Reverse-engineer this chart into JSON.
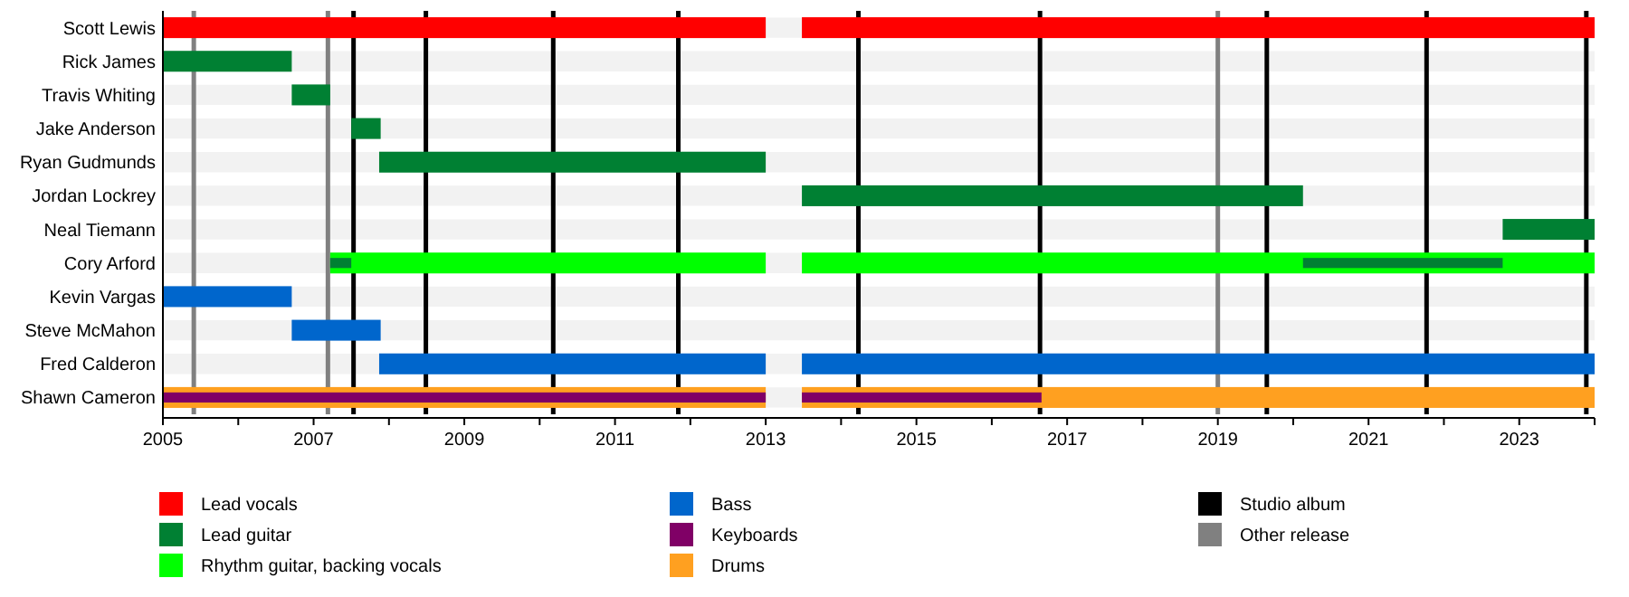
{
  "chart_data": {
    "type": "bar",
    "orientation": "horizontal",
    "legend": "bottom",
    "categories": [
      "Scott Lewis",
      "Rick James",
      "Travis Whiting",
      "Jake Anderson",
      "Ryan Gudmunds",
      "Jordan Lockrey",
      "Neal Tiemann",
      "Cory Arford",
      "Kevin Vargas",
      "Steve McMahon",
      "Fred Calderon",
      "Shawn Cameron"
    ],
    "xlim": [
      2005,
      2024
    ],
    "xticks": [
      2005,
      {
        "value": 2006,
        "label": null
      },
      2007,
      {
        "value": 2008,
        "label": null
      },
      2009,
      {
        "value": 2010,
        "label": null
      },
      2011,
      {
        "value": 2012,
        "label": null
      },
      2013,
      {
        "value": 2014,
        "label": null
      },
      2015,
      {
        "value": 2016,
        "label": null
      },
      2017,
      {
        "value": 2018,
        "label": null
      },
      2019,
      {
        "value": 2020,
        "label": null
      },
      2021,
      {
        "value": 2022,
        "label": null
      },
      2023,
      {
        "value": 2024,
        "label": null
      }
    ],
    "series": [
      {
        "name": "Lead vocals",
        "color": "#ff0000",
        "base": [
          2005,
          null,
          null,
          null,
          null,
          null,
          null,
          null,
          null,
          null,
          null,
          null
        ],
        "values": [
          8,
          null,
          null,
          null,
          null,
          null,
          null,
          null,
          null,
          null,
          null,
          null
        ]
      },
      {
        "color": "#ff0000",
        "base": [
          2013.48,
          null,
          null,
          null,
          null,
          null,
          null,
          null,
          null,
          null,
          null,
          null
        ],
        "values": [
          10.52,
          null,
          null,
          null,
          null,
          null,
          null,
          null,
          null,
          null,
          null,
          null
        ]
      },
      {
        "name": "Lead guitar",
        "color": "#008033",
        "base": [
          null,
          2005,
          2006.71,
          2007.5,
          2007.87,
          2013.48,
          2022.78,
          2007.22,
          null,
          null,
          null,
          null
        ],
        "values": [
          null,
          1.71,
          0.51,
          0.39,
          5.13,
          6.65,
          1.22,
          0.28,
          null,
          null,
          null,
          null
        ]
      },
      {
        "color": "#008033",
        "base": [
          null,
          null,
          null,
          null,
          null,
          null,
          null,
          2020.13,
          null,
          null,
          null,
          null
        ],
        "values": [
          null,
          null,
          null,
          null,
          null,
          null,
          null,
          2.65,
          null,
          null,
          null,
          null
        ]
      },
      {
        "name": "Rhythm guitar, backing vocals",
        "color": "#00ff00",
        "base": [
          null,
          null,
          null,
          null,
          null,
          null,
          null,
          2007.22,
          null,
          null,
          null,
          null
        ],
        "values": [
          null,
          null,
          null,
          null,
          null,
          null,
          null,
          5.78,
          null,
          null,
          null,
          null
        ]
      },
      {
        "color": "#00ff00",
        "base": [
          null,
          null,
          null,
          null,
          null,
          null,
          null,
          2013.48,
          null,
          null,
          null,
          null
        ],
        "values": [
          null,
          null,
          null,
          null,
          null,
          null,
          null,
          10.52,
          null,
          null,
          null,
          null
        ]
      },
      {
        "name": "Bass",
        "color": "#0066cc",
        "base": [
          null,
          null,
          null,
          null,
          null,
          null,
          null,
          null,
          2005,
          2006.71,
          2007.87,
          null
        ],
        "values": [
          null,
          null,
          null,
          null,
          null,
          null,
          null,
          null,
          1.71,
          1.18,
          5.13,
          null
        ]
      },
      {
        "color": "#0066cc",
        "base": [
          null,
          null,
          null,
          null,
          null,
          null,
          null,
          null,
          null,
          null,
          2013.48,
          null
        ],
        "values": [
          null,
          null,
          null,
          null,
          null,
          null,
          null,
          null,
          null,
          null,
          10.52,
          null
        ]
      },
      {
        "name": "Keyboards",
        "color": "#800066",
        "base": [
          null,
          null,
          null,
          null,
          null,
          null,
          null,
          null,
          null,
          null,
          null,
          2005
        ],
        "values": [
          null,
          null,
          null,
          null,
          null,
          null,
          null,
          null,
          null,
          null,
          null,
          8
        ]
      },
      {
        "color": "#800066",
        "base": [
          null,
          null,
          null,
          null,
          null,
          null,
          null,
          null,
          null,
          null,
          null,
          2013.48
        ],
        "values": [
          null,
          null,
          null,
          null,
          null,
          null,
          null,
          null,
          null,
          null,
          null,
          3.18
        ]
      },
      {
        "name": "Drums",
        "color": "#ffa020",
        "base": [
          null,
          null,
          null,
          null,
          null,
          null,
          null,
          null,
          null,
          null,
          null,
          2005
        ],
        "values": [
          null,
          null,
          null,
          null,
          null,
          null,
          null,
          null,
          null,
          null,
          null,
          8
        ]
      },
      {
        "color": "#ffa020",
        "base": [
          null,
          null,
          null,
          null,
          null,
          null,
          null,
          null,
          null,
          null,
          null,
          2013.48
        ],
        "values": [
          null,
          null,
          null,
          null,
          null,
          null,
          null,
          null,
          null,
          null,
          null,
          10.52
        ]
      }
    ],
    "ref_lines": [
      {
        "axis": "x",
        "value": 2007.53,
        "label": "Studio album",
        "color": "#000000"
      },
      {
        "axis": "x",
        "value": 2008.49,
        "color": "#000000"
      },
      {
        "axis": "x",
        "value": 2010.18,
        "color": "#000000"
      },
      {
        "axis": "x",
        "value": 2011.84,
        "color": "#000000"
      },
      {
        "axis": "x",
        "value": 2014.23,
        "color": "#000000"
      },
      {
        "axis": "x",
        "value": 2016.64,
        "color": "#000000"
      },
      {
        "axis": "x",
        "value": 2019.65,
        "color": "#000000"
      },
      {
        "axis": "x",
        "value": 2021.77,
        "color": "#000000"
      },
      {
        "axis": "x",
        "value": 2023.89,
        "color": "#000000"
      },
      {
        "axis": "x",
        "value": 2005.41,
        "label": "Other release",
        "color": "#808080"
      },
      {
        "axis": "x",
        "value": 2007.19,
        "color": "#808080"
      },
      {
        "axis": "x",
        "value": 2019.0,
        "color": "#808080"
      }
    ]
  }
}
